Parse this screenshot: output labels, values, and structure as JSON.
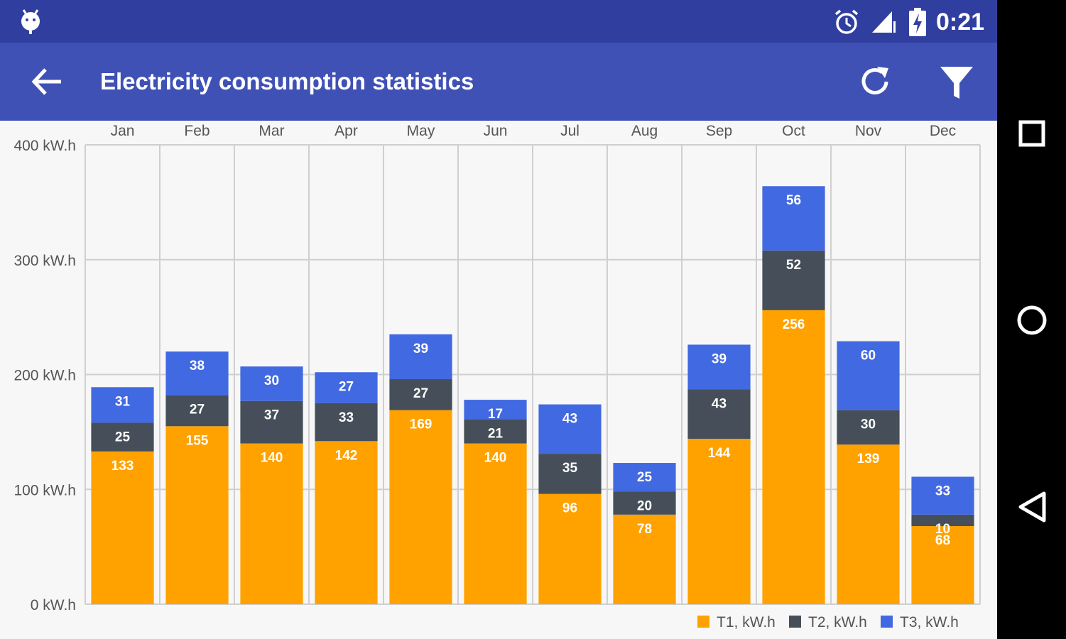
{
  "status_bar": {
    "time": "0:21",
    "icons": [
      "android-debug-icon",
      "alarm-icon",
      "signal-icon",
      "battery-charging-icon"
    ]
  },
  "app_bar": {
    "title": "Electricity consumption statistics",
    "icons": [
      "back-arrow-icon",
      "refresh-icon",
      "filter-icon"
    ]
  },
  "nav_bar": {
    "icons": [
      "recents-square-icon",
      "home-circle-icon",
      "back-triangle-icon"
    ]
  },
  "colors": {
    "status_bar": "#303f9f",
    "app_bar": "#3f51b5",
    "t1": "#ffa200",
    "t2": "#464f59",
    "t3": "#4169e1"
  },
  "chart_data": {
    "type": "bar",
    "stacked": true,
    "categories": [
      "Jan",
      "Feb",
      "Mar",
      "Apr",
      "May",
      "Jun",
      "Jul",
      "Aug",
      "Sep",
      "Oct",
      "Nov",
      "Dec"
    ],
    "series": [
      {
        "name": "T1, kW.h",
        "color": "#ffa200",
        "values": [
          133,
          155,
          140,
          142,
          169,
          140,
          96,
          78,
          144,
          256,
          139,
          68
        ]
      },
      {
        "name": "T2, kW.h",
        "color": "#464f59",
        "values": [
          25,
          27,
          37,
          33,
          27,
          21,
          35,
          20,
          43,
          52,
          30,
          10
        ]
      },
      {
        "name": "T3, kW.h",
        "color": "#4169e1",
        "values": [
          31,
          38,
          30,
          27,
          39,
          17,
          43,
          25,
          39,
          56,
          60,
          33
        ]
      }
    ],
    "ylim": [
      0,
      400
    ],
    "yticks": [
      "0 kW.h",
      "100 kW.h",
      "200 kW.h",
      "300 kW.h",
      "400 kW.h"
    ],
    "x_axis_position": "top",
    "grid": true,
    "legend_position": "bottom-right",
    "data_labels": true
  }
}
